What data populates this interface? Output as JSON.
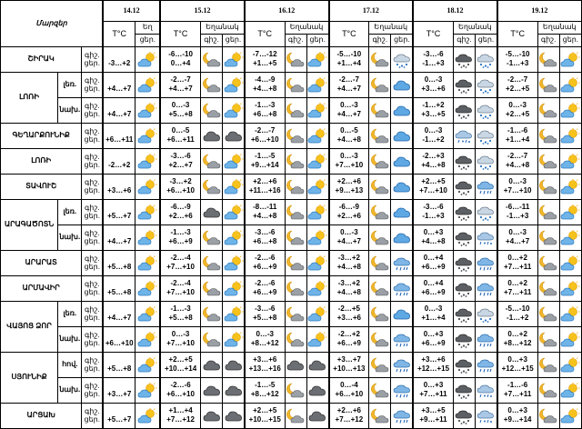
{
  "header": {
    "region_title": "Մարզեր",
    "temp_label": "T°C",
    "weather_label": "Եղանակ",
    "weather_label_truncated": "Եղ",
    "day_label": "ցեր.",
    "night_label": "գիշ."
  },
  "dates": [
    "14.12",
    "15.12",
    "16.12",
    "17.12",
    "18.12",
    "19.12"
  ],
  "icon_legend": {
    "sun-cloud": "sun-cloud-icon",
    "moon-cloud": "moon-cloud-icon",
    "cloud-blue": "cloud-icon",
    "cloud-dark": "dark-cloud-icon",
    "snow": "snow-cloud-icon",
    "rain": "rain-cloud-icon",
    "rain-snow": "rain-snow-cloud-icon",
    "dark-snow": "dark-snow-cloud-icon"
  },
  "rows": [
    {
      "region": "ՇԻՐԱԿ",
      "sub": "",
      "tod": [
        "գիշ.",
        "ցեր."
      ],
      "days": [
        {
          "t": [
            "",
            "-3…+2"
          ],
          "i": [
            "sun-cloud",
            ""
          ]
        },
        {
          "t": [
            "-6…-10",
            "0…+4"
          ],
          "i": [
            "moon-cloud",
            "sun-cloud"
          ]
        },
        {
          "t": [
            "-7…-12",
            "+1…+5"
          ],
          "i": [
            "moon-cloud",
            "sun-cloud"
          ]
        },
        {
          "t": [
            "-5…-10",
            "+1…+4"
          ],
          "i": [
            "moon-cloud",
            "snow"
          ]
        },
        {
          "t": [
            "-3…-6",
            "-1…+3"
          ],
          "i": [
            "dark-snow",
            "snow"
          ]
        },
        {
          "t": [
            "-5…-10",
            "-1…+3"
          ],
          "i": [
            "moon-cloud",
            "sun-cloud"
          ]
        }
      ]
    },
    {
      "region": "ԼՈՌԻ",
      "sub": "լեռ.",
      "tod": [
        "գիշ.",
        "ցեր."
      ],
      "days": [
        {
          "t": [
            "",
            "+4…+7"
          ],
          "i": [
            "sun-cloud",
            ""
          ]
        },
        {
          "t": [
            "-2…-7",
            "+4…+7"
          ],
          "i": [
            "moon-cloud",
            "sun-cloud"
          ]
        },
        {
          "t": [
            "-4…-9",
            "+4…+8"
          ],
          "i": [
            "moon-cloud",
            "sun-cloud"
          ]
        },
        {
          "t": [
            "-2…-7",
            "+4…+7"
          ],
          "i": [
            "moon-cloud",
            "cloud-blue"
          ]
        },
        {
          "t": [
            "0…-3",
            "+3…+6"
          ],
          "i": [
            "dark-snow",
            "snow"
          ]
        },
        {
          "t": [
            "-2…-7",
            "+2…+5"
          ],
          "i": [
            "moon-cloud",
            "sun-cloud"
          ]
        }
      ]
    },
    {
      "region": "",
      "sub": "նախ.",
      "tod": [
        "գիշ.",
        "ցեր."
      ],
      "days": [
        {
          "t": [
            "",
            "+4…+7"
          ],
          "i": [
            "sun-cloud",
            ""
          ]
        },
        {
          "t": [
            "0…-3",
            "+5…+8"
          ],
          "i": [
            "moon-cloud",
            "sun-cloud"
          ]
        },
        {
          "t": [
            "-1…-3",
            "+6…+8"
          ],
          "i": [
            "moon-cloud",
            "sun-cloud"
          ]
        },
        {
          "t": [
            "0…-3",
            "+4…+7"
          ],
          "i": [
            "moon-cloud",
            "cloud-blue"
          ]
        },
        {
          "t": [
            "-1…+2",
            "+3…+5"
          ],
          "i": [
            "dark-snow",
            "snow"
          ]
        },
        {
          "t": [
            "0…-3",
            "+2…+5"
          ],
          "i": [
            "moon-cloud",
            "sun-cloud"
          ]
        }
      ]
    },
    {
      "region": "ԳԵՂԱՐՔՈՒՆԻՔ",
      "sub": "",
      "tod": [
        "գիշ.",
        "ցեր."
      ],
      "days": [
        {
          "t": [
            "",
            "+6…+11"
          ],
          "i": [
            "sun-cloud",
            ""
          ]
        },
        {
          "t": [
            "0…-5",
            "+6…+11"
          ],
          "i": [
            "cloud-dark",
            "cloud-dark"
          ]
        },
        {
          "t": [
            "-2…-7",
            "+6…+10"
          ],
          "i": [
            "moon-cloud",
            "sun-cloud"
          ]
        },
        {
          "t": [
            "0…-5",
            "+4…+8"
          ],
          "i": [
            "moon-cloud",
            "cloud-blue"
          ]
        },
        {
          "t": [
            "0…-3",
            "-1…+2"
          ],
          "i": [
            "rain-snow",
            "snow"
          ]
        },
        {
          "t": [
            "-1…-6",
            "+1…+4"
          ],
          "i": [
            "moon-cloud",
            "sun-cloud"
          ]
        }
      ]
    },
    {
      "region": "ԼՈՌԻ",
      "sub": "",
      "tod": [
        "գիշ.",
        "ցեր."
      ],
      "days": [
        {
          "t": [
            "",
            "-2…+2"
          ],
          "i": [
            "sun-cloud",
            ""
          ]
        },
        {
          "t": [
            "-3…-6",
            "+2…+7"
          ],
          "i": [
            "moon-cloud",
            "sun-cloud"
          ]
        },
        {
          "t": [
            "-1…-5",
            "+9…+14"
          ],
          "i": [
            "moon-cloud",
            "sun-cloud"
          ]
        },
        {
          "t": [
            "0…-3",
            "+7…+10"
          ],
          "i": [
            "moon-cloud",
            "cloud-blue"
          ]
        },
        {
          "t": [
            "-2…+3",
            "+4…+8"
          ],
          "i": [
            "dark-snow",
            "snow"
          ]
        },
        {
          "t": [
            "-2…-7",
            "+4…+8"
          ],
          "i": [
            "moon-cloud",
            "sun-cloud"
          ]
        }
      ]
    },
    {
      "region": "ՏԱՎՈՒՇ",
      "sub": "",
      "tod": [
        "գիշ.",
        "ցեր."
      ],
      "days": [
        {
          "t": [
            "",
            "+3…+6"
          ],
          "i": [
            "sun-cloud",
            ""
          ]
        },
        {
          "t": [
            "-3…+2",
            "+6…+10"
          ],
          "i": [
            "moon-cloud",
            "sun-cloud"
          ]
        },
        {
          "t": [
            "+2…+6",
            "+11…+16"
          ],
          "i": [
            "moon-cloud",
            "sun-cloud"
          ]
        },
        {
          "t": [
            "+2…+6",
            "+9…+13"
          ],
          "i": [
            "moon-cloud",
            "cloud-blue"
          ]
        },
        {
          "t": [
            "+2…+5",
            "+7…+10"
          ],
          "i": [
            "dark-snow",
            "rain"
          ]
        },
        {
          "t": [
            "0…-3",
            "+7…+10"
          ],
          "i": [
            "moon-cloud",
            "sun-cloud"
          ]
        }
      ]
    },
    {
      "region": "ԱՐԱԳԱԾՈՏՆ",
      "sub": "լեռ.",
      "tod": [
        "գիշ.",
        "ցեր."
      ],
      "days": [
        {
          "t": [
            "",
            "+5…+7"
          ],
          "i": [
            "sun-cloud",
            ""
          ]
        },
        {
          "t": [
            "-6…-9",
            "+2…+6"
          ],
          "i": [
            "cloud-dark",
            "sun-cloud"
          ]
        },
        {
          "t": [
            "-8…-11",
            "+4…+8"
          ],
          "i": [
            "moon-cloud",
            "sun-cloud"
          ]
        },
        {
          "t": [
            "-6…-9",
            "+2…+6"
          ],
          "i": [
            "moon-cloud",
            "cloud-blue"
          ]
        },
        {
          "t": [
            "-3…-6",
            "-1…+3"
          ],
          "i": [
            "dark-snow",
            "snow"
          ]
        },
        {
          "t": [
            "-6…-11",
            "-1…+3"
          ],
          "i": [
            "moon-cloud",
            "sun-cloud"
          ]
        }
      ]
    },
    {
      "region": "",
      "sub": "նախ.",
      "tod": [
        "գիշ.",
        "ցեր."
      ],
      "days": [
        {
          "t": [
            "",
            "+4…+7"
          ],
          "i": [
            "sun-cloud",
            ""
          ]
        },
        {
          "t": [
            "-1…-3",
            "+6…+9"
          ],
          "i": [
            "moon-cloud",
            "sun-cloud"
          ]
        },
        {
          "t": [
            "-3…-6",
            "+6…+8"
          ],
          "i": [
            "moon-cloud",
            "sun-cloud"
          ]
        },
        {
          "t": [
            "0…-3",
            "+4…+7"
          ],
          "i": [
            "moon-cloud",
            "cloud-blue"
          ]
        },
        {
          "t": [
            "0…+3",
            "+4…+8"
          ],
          "i": [
            "dark-snow",
            "rain-snow"
          ]
        },
        {
          "t": [
            "0…-3",
            "+4…+7"
          ],
          "i": [
            "moon-cloud",
            "sun-cloud"
          ]
        }
      ]
    },
    {
      "region": "ԱՐԱՐԱՏ",
      "sub": "",
      "tod": [
        "գիշ.",
        "ցեր."
      ],
      "days": [
        {
          "t": [
            "",
            "+5…+8"
          ],
          "i": [
            "sun-cloud",
            ""
          ]
        },
        {
          "t": [
            "-2…-4",
            "+7…+10"
          ],
          "i": [
            "moon-cloud",
            "sun-cloud"
          ]
        },
        {
          "t": [
            "-2…-6",
            "+6…+9"
          ],
          "i": [
            "moon-cloud",
            "sun-cloud"
          ]
        },
        {
          "t": [
            "-3…+2",
            "+4…+8"
          ],
          "i": [
            "moon-cloud",
            "rain"
          ]
        },
        {
          "t": [
            "0…+4",
            "+6…+9"
          ],
          "i": [
            "dark-snow",
            "rain"
          ]
        },
        {
          "t": [
            "0…+2",
            "+7…+11"
          ],
          "i": [
            "moon-cloud",
            "sun-cloud"
          ]
        }
      ]
    },
    {
      "region": "ԱՐՄԱՎԻՐ",
      "sub": "",
      "tod": [
        "գիշ.",
        "ցեր."
      ],
      "days": [
        {
          "t": [
            "",
            "+5…+8"
          ],
          "i": [
            "sun-cloud",
            ""
          ]
        },
        {
          "t": [
            "-2…-4",
            "+7…+10"
          ],
          "i": [
            "moon-cloud",
            "sun-cloud"
          ]
        },
        {
          "t": [
            "-2…-6",
            "+6…+9"
          ],
          "i": [
            "moon-cloud",
            "sun-cloud"
          ]
        },
        {
          "t": [
            "-3…+2",
            "+4…+8"
          ],
          "i": [
            "moon-cloud",
            "rain"
          ]
        },
        {
          "t": [
            "0…+4",
            "+6…+9"
          ],
          "i": [
            "dark-snow",
            "rain"
          ]
        },
        {
          "t": [
            "0…+2",
            "+7…+11"
          ],
          "i": [
            "moon-cloud",
            "sun-cloud"
          ]
        }
      ]
    },
    {
      "region": "ՎԱՅՈՑ ՁՈՐ",
      "sub": "լեռ.",
      "tod": [
        "գիշ.",
        "ցեր."
      ],
      "days": [
        {
          "t": [
            "",
            "+4…+7"
          ],
          "i": [
            "sun-cloud",
            ""
          ]
        },
        {
          "t": [
            "-1…-3",
            "+5…+8"
          ],
          "i": [
            "moon-cloud",
            "sun-cloud"
          ]
        },
        {
          "t": [
            "-3…-6",
            "+5…+8"
          ],
          "i": [
            "moon-cloud",
            "sun-cloud"
          ]
        },
        {
          "t": [
            "-2…+5",
            "+3…+6"
          ],
          "i": [
            "moon-cloud",
            "cloud-blue"
          ]
        },
        {
          "t": [
            "0…-3",
            "+1…+4"
          ],
          "i": [
            "dark-snow",
            "snow"
          ]
        },
        {
          "t": [
            "-5…-10",
            "-1…+2"
          ],
          "i": [
            "moon-cloud",
            "sun-cloud"
          ]
        }
      ]
    },
    {
      "region": "",
      "sub": "նախ.",
      "tod": [
        "գիշ.",
        "ցեր."
      ],
      "days": [
        {
          "t": [
            "",
            "+6…+10"
          ],
          "i": [
            "sun-cloud",
            ""
          ]
        },
        {
          "t": [
            "0…-3",
            "+7…+10"
          ],
          "i": [
            "moon-cloud",
            "sun-cloud"
          ]
        },
        {
          "t": [
            "0…-3",
            "+8…+12"
          ],
          "i": [
            "moon-cloud",
            "sun-cloud"
          ]
        },
        {
          "t": [
            "-2…+2",
            "+6…+9"
          ],
          "i": [
            "moon-cloud",
            "rain"
          ]
        },
        {
          "t": [
            "0…+3",
            "+6…+9"
          ],
          "i": [
            "dark-snow",
            "rain"
          ]
        },
        {
          "t": [
            "0…+2",
            "+8…+12"
          ],
          "i": [
            "moon-cloud",
            "sun-cloud"
          ]
        }
      ]
    },
    {
      "region": "ՍՅՈՒՆԻՔ",
      "sub": "հով.",
      "tod": [
        "գիշ.",
        "ցեր."
      ],
      "days": [
        {
          "t": [
            "",
            "+5…+8"
          ],
          "i": [
            "sun-cloud",
            ""
          ]
        },
        {
          "t": [
            "+2…+5",
            "+10…+14"
          ],
          "i": [
            "cloud-dark",
            "cloud-dark"
          ]
        },
        {
          "t": [
            "+3…+6",
            "+13…+16"
          ],
          "i": [
            "cloud-dark",
            "cloud-dark"
          ]
        },
        {
          "t": [
            "+3…+7",
            "+10…+13"
          ],
          "i": [
            "moon-cloud",
            "rain"
          ]
        },
        {
          "t": [
            "+3…+6",
            "+12…+15"
          ],
          "i": [
            "dark-snow",
            "rain"
          ]
        },
        {
          "t": [
            "0…+3",
            "+12…+15"
          ],
          "i": [
            "moon-cloud",
            "sun-cloud"
          ]
        }
      ]
    },
    {
      "region": "",
      "sub": "նախ.",
      "tod": [
        "գիշ.",
        "ցեր."
      ],
      "days": [
        {
          "t": [
            "",
            "+3…+7"
          ],
          "i": [
            "sun-cloud",
            ""
          ]
        },
        {
          "t": [
            "-2…-6",
            "+6…+10"
          ],
          "i": [
            "cloud-dark",
            "cloud-dark"
          ]
        },
        {
          "t": [
            "-1…-5",
            "+8…+12"
          ],
          "i": [
            "moon-cloud",
            "cloud-dark"
          ]
        },
        {
          "t": [
            "0…-4",
            "+6…+10"
          ],
          "i": [
            "moon-cloud",
            "rain"
          ]
        },
        {
          "t": [
            "0…+3",
            "+7…+11"
          ],
          "i": [
            "dark-snow",
            "rain-snow"
          ]
        },
        {
          "t": [
            "-1…-6",
            "+7…+11"
          ],
          "i": [
            "moon-cloud",
            "sun-cloud"
          ]
        }
      ]
    },
    {
      "region": "ԱՐՑԱԽ",
      "sub": "",
      "tod": [
        "գիշ.",
        "ցեր."
      ],
      "days": [
        {
          "t": [
            "",
            "+5…+7"
          ],
          "i": [
            "sun-cloud",
            ""
          ]
        },
        {
          "t": [
            "+1…+4",
            "+7…+12"
          ],
          "i": [
            "cloud-dark",
            "cloud-dark"
          ]
        },
        {
          "t": [
            "+2…+5",
            "+10…+15"
          ],
          "i": [
            "moon-cloud",
            "cloud-dark"
          ]
        },
        {
          "t": [
            "+2…+6",
            "+7…+12"
          ],
          "i": [
            "moon-cloud",
            "rain"
          ]
        },
        {
          "t": [
            "+3…+5",
            "+9…+11"
          ],
          "i": [
            "dark-snow",
            "rain-snow"
          ]
        },
        {
          "t": [
            "0…+3",
            "+9…+14"
          ],
          "i": [
            "moon-cloud",
            "sun-cloud"
          ]
        }
      ]
    }
  ]
}
